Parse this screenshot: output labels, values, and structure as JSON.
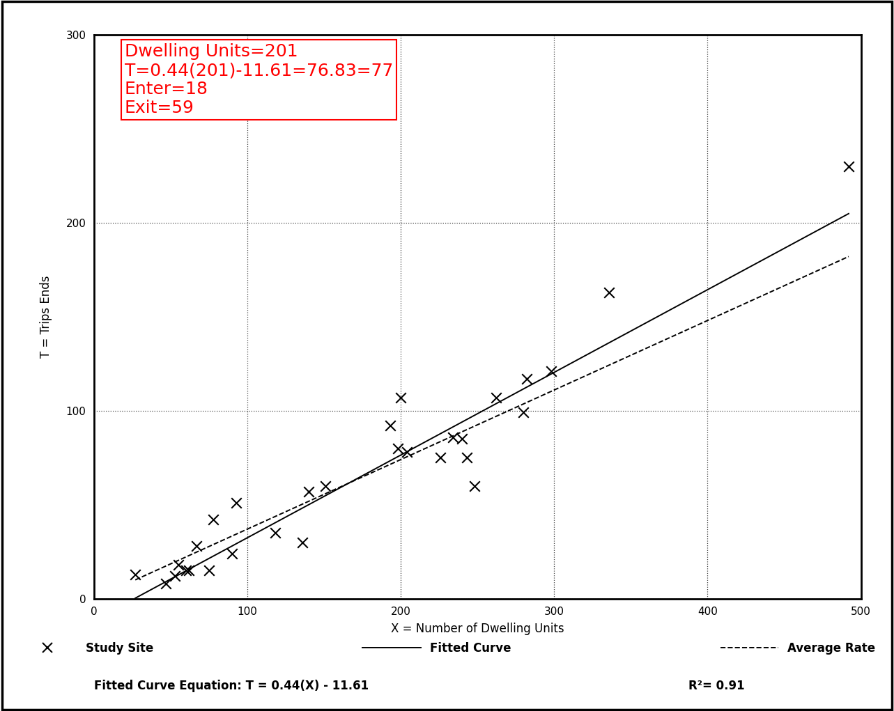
{
  "chart_data": {
    "type": "scatter",
    "x_label": "X = Number of Dwelling Units",
    "y_label": "T = Trips Ends",
    "xlim": [
      0,
      500
    ],
    "xticks": [
      0,
      100,
      200,
      300,
      400,
      500
    ],
    "ylim": [
      0,
      300
    ],
    "yticks": [
      0,
      100,
      200,
      300
    ],
    "grid": true,
    "legend": "lower center",
    "annotation_box": [
      "Dwelling Units=201",
      "T=0.44(201)-11.61=76.83=77",
      "Enter=18",
      "Exit=59"
    ],
    "equation_text": "Fitted Curve Equation: T = 0.44(X) - 11.61",
    "r2_text": "R²= 0.91",
    "series": [
      {
        "name": "Study Site",
        "type": "scatter",
        "marker": "x",
        "color": "#000000",
        "x": [
          27,
          47,
          53,
          55,
          60,
          62,
          67,
          75,
          78,
          90,
          93,
          118,
          136,
          140,
          151,
          193,
          198,
          200,
          204,
          226,
          234,
          240,
          243,
          248,
          262,
          280,
          282,
          298,
          336,
          492
        ],
        "values": [
          13,
          8,
          12,
          18,
          15,
          15,
          28,
          15,
          42,
          24,
          51,
          35,
          30,
          57,
          60,
          92,
          80,
          107,
          78,
          75,
          86,
          85,
          75,
          60,
          107,
          99,
          117,
          121,
          163,
          230
        ]
      },
      {
        "name": "Fitted Curve",
        "type": "line",
        "line_style": "solid",
        "color": "#000000",
        "slope": 0.44,
        "intercept": -11.61
      },
      {
        "name": "Average Rate",
        "type": "line",
        "line_style": "dashed",
        "color": "#000000",
        "rate": 0.37
      }
    ]
  }
}
